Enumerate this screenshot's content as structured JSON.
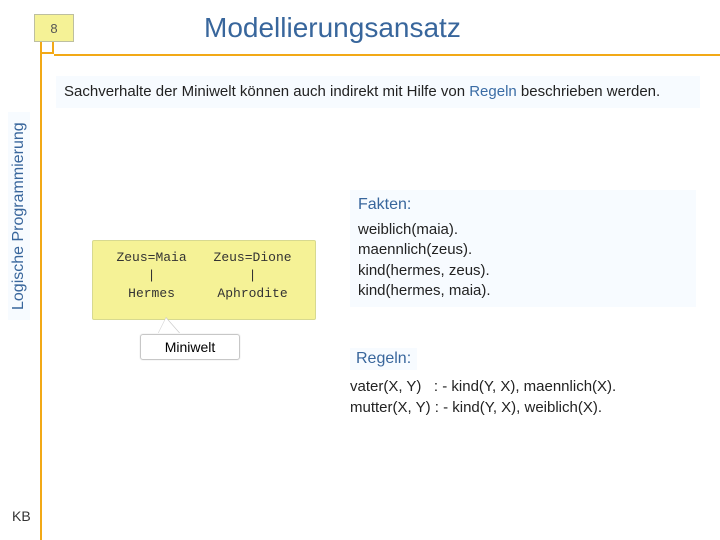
{
  "slide_number": "8",
  "title": "Modellierungsansatz",
  "sidebar_label": "Logische Programmierung",
  "intro": {
    "prefix": "Sachverhalte der Miniwelt können auch indirekt mit Hilfe von ",
    "highlight": "Regeln",
    "suffix": " beschrieben werden."
  },
  "miniwelt": {
    "label": "Miniwelt",
    "trees": [
      {
        "top": "Zeus=Maia",
        "mid": "|",
        "bottom": "Hermes"
      },
      {
        "top": "Zeus=Dione",
        "mid": "|",
        "bottom": "Aphrodite"
      }
    ]
  },
  "fakten": {
    "heading": "Fakten:",
    "lines": [
      "weiblich(maia).",
      "maennlich(zeus).",
      "kind(hermes, zeus).",
      "kind(hermes, maia)."
    ]
  },
  "regeln": {
    "heading": "Regeln:",
    "lines": [
      "vater(X, Y)   : - kind(Y, X), maennlich(X).",
      "mutter(X, Y) : - kind(Y, X), weiblich(X)."
    ]
  },
  "footer": "KB",
  "colors": {
    "accent": "#f2a916",
    "title": "#38669c",
    "pagebox_bg": "#f5f296",
    "light_panel": "#f7fbff"
  }
}
